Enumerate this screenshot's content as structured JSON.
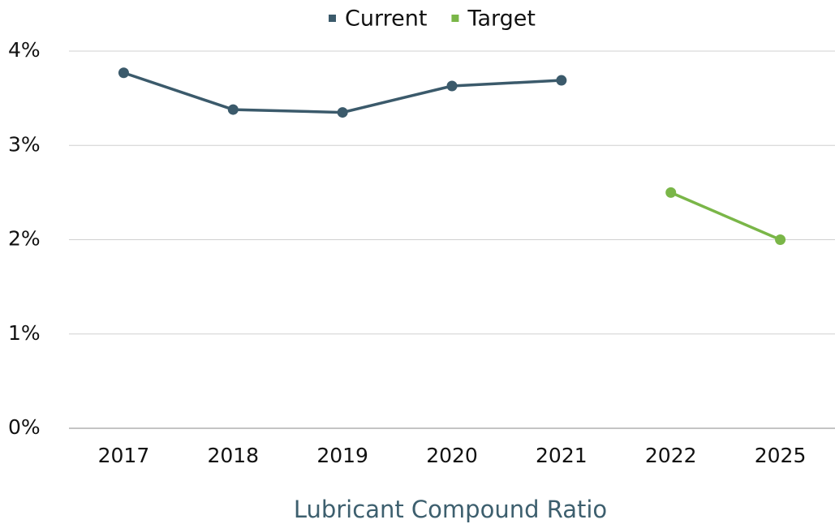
{
  "chart_data": {
    "type": "line",
    "categories": [
      "2017",
      "2018",
      "2019",
      "2020",
      "2021",
      "2022",
      "2025"
    ],
    "series": [
      {
        "name": "Current",
        "color": "#3b5a6b",
        "values": [
          3.77,
          3.38,
          3.35,
          3.63,
          3.69,
          null,
          null
        ]
      },
      {
        "name": "Target",
        "color": "#7ab648",
        "values": [
          null,
          null,
          null,
          null,
          null,
          2.5,
          2.0
        ]
      }
    ],
    "ylim": [
      0,
      4
    ],
    "yticks": [
      {
        "value": 0,
        "label": "0%"
      },
      {
        "value": 1,
        "label": "1%"
      },
      {
        "value": 2,
        "label": "2%"
      },
      {
        "value": 3,
        "label": "3%"
      },
      {
        "value": 4,
        "label": "4%"
      }
    ],
    "grid": true,
    "legend": "top",
    "x_label": "Lubricant Compound Ratio"
  }
}
